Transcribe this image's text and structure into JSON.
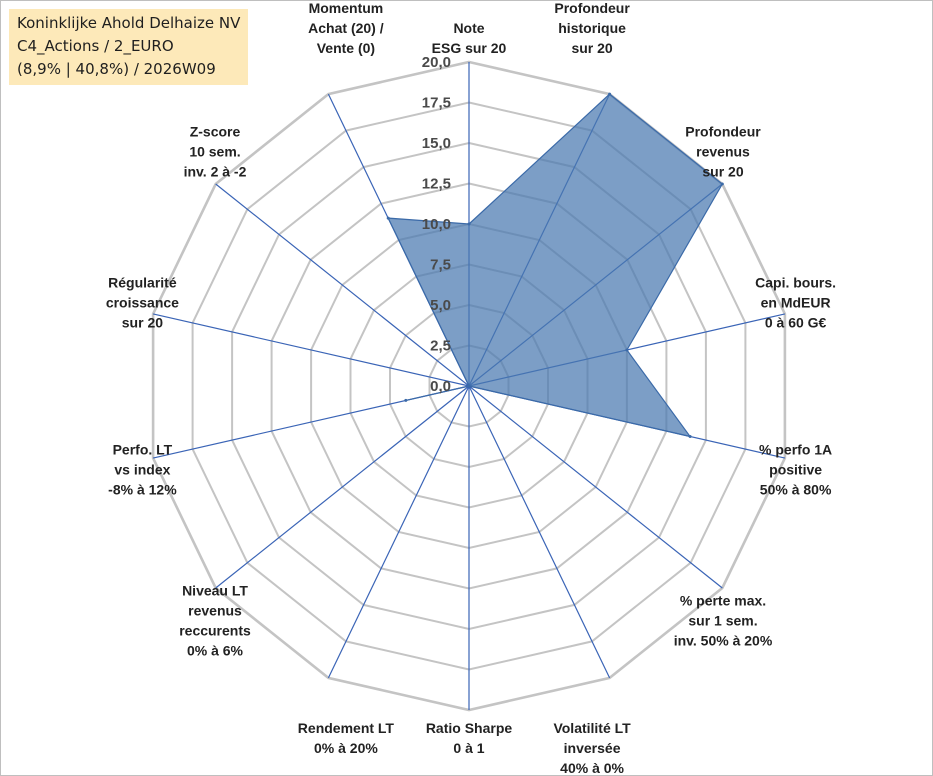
{
  "info": {
    "company": "Koninklijke Ahold Delhaize NV",
    "portfolio": "C4_Actions / 2_EURO",
    "stats": "(8,9% | 40,8%) / 2026W09"
  },
  "colors": {
    "fill": "#4a78b0",
    "stroke": "#3b6aa8",
    "spoke": "#3a64b6",
    "grid": "#c4c4c4",
    "info_bg": "#fde9b9"
  },
  "chart_data": {
    "type": "radar",
    "title": "",
    "rmin": 0,
    "rmax": 20,
    "ticks": [
      "0,0",
      "2,5",
      "5,0",
      "7,5",
      "10,0",
      "12,5",
      "15,0",
      "17,5",
      "20,0"
    ],
    "axes": [
      {
        "label": [
          "Note",
          "ESG sur 20"
        ],
        "value": 10
      },
      {
        "label": [
          "Profondeur",
          "historique",
          "sur 20"
        ],
        "value": 20
      },
      {
        "label": [
          "Profondeur",
          "revenus",
          "sur 20"
        ],
        "value": 20
      },
      {
        "label": [
          "Capi. bours.",
          "en MdEUR",
          "0 à 60 G€"
        ],
        "value": 10
      },
      {
        "label": [
          "% perfo 1A",
          "positive",
          "50% à 80%"
        ],
        "value": 14
      },
      {
        "label": [
          "% perte max.",
          "sur 1 sem.",
          "inv. 50% à 20%"
        ],
        "value": 0
      },
      {
        "label": [
          "Volatilité LT",
          "inversée",
          "40% à 0%"
        ],
        "value": 0
      },
      {
        "label": [
          "Ratio Sharpe",
          "0 à 1"
        ],
        "value": 0
      },
      {
        "label": [
          "Rendement LT",
          "0% à 20%"
        ],
        "value": 0
      },
      {
        "label": [
          "Niveau LT",
          "revenus",
          "reccurents",
          "0% à 6%"
        ],
        "value": 0
      },
      {
        "label": [
          "Perfo. LT",
          "vs index",
          "-8% à 12%"
        ],
        "value": 4
      },
      {
        "label": [
          "Régularité",
          "croissance",
          "sur 20"
        ],
        "value": 0
      },
      {
        "label": [
          "Z-score",
          "10 sem.",
          "inv. 2 à -2"
        ],
        "value": 0
      },
      {
        "label": [
          "Momentum",
          "Achat (20) /",
          "Vente (0)"
        ],
        "value": 11.5
      }
    ]
  }
}
